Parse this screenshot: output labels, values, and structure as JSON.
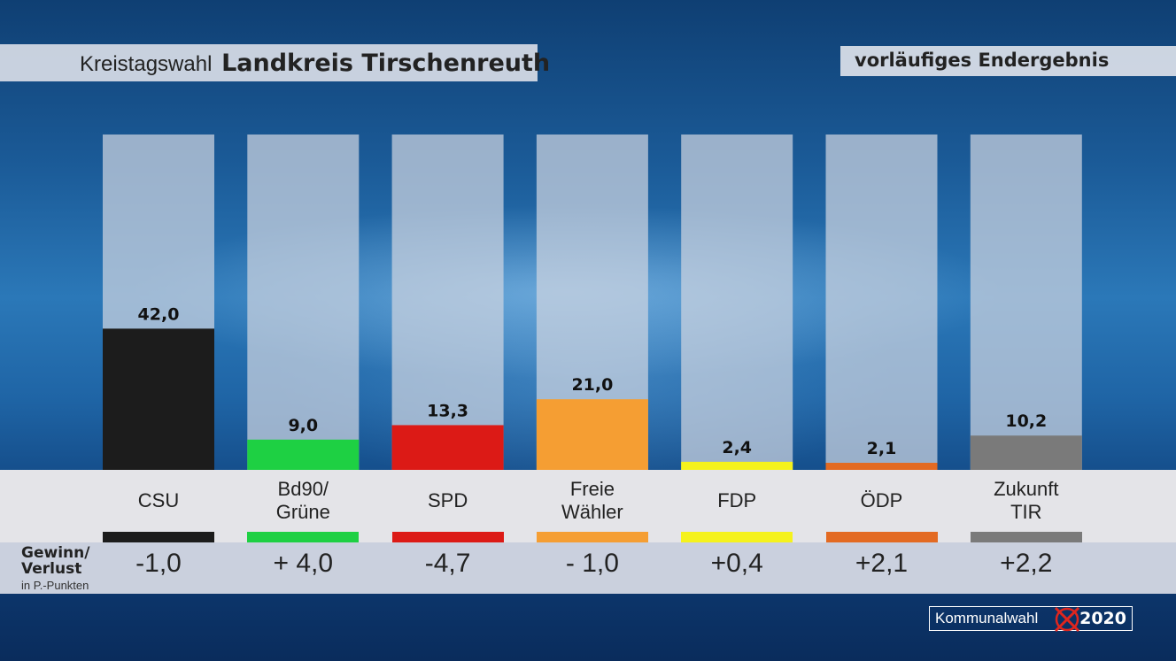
{
  "header": {
    "title_prefix": "Kreistagswahl",
    "title_main": "Landkreis Tirschenreuth",
    "status": "vorläufiges Endergebnis"
  },
  "chart_data": {
    "type": "bar",
    "categories": [
      "CSU",
      "Bd90/\nGrüne",
      "SPD",
      "Freie\nWähler",
      "FDP",
      "ÖDP",
      "Zukunft\nTIR"
    ],
    "values": [
      42.0,
      9.0,
      13.3,
      21.0,
      2.4,
      2.1,
      10.2
    ],
    "value_labels": [
      "42,0",
      "9,0",
      "13,3",
      "21,0",
      "2,4",
      "2,1",
      "10,2"
    ],
    "colors": [
      "#1c1c1c",
      "#1ed043",
      "#dc1a16",
      "#f59e33",
      "#f5f21c",
      "#e36a22",
      "#7a7a7a"
    ],
    "ylim": [
      0,
      100
    ],
    "changes": [
      "-1,0",
      "+ 4,0",
      "-4,7",
      "- 1,0",
      "+0,4",
      "+2,1",
      "+2,2"
    ]
  },
  "change_label": {
    "line1": "Gewinn/",
    "line2": "Verlust",
    "sub": "in P.-Punkten"
  },
  "logo": {
    "text": "Kommunalwahl",
    "year": "2020",
    "mark_color": "#e0261e"
  }
}
